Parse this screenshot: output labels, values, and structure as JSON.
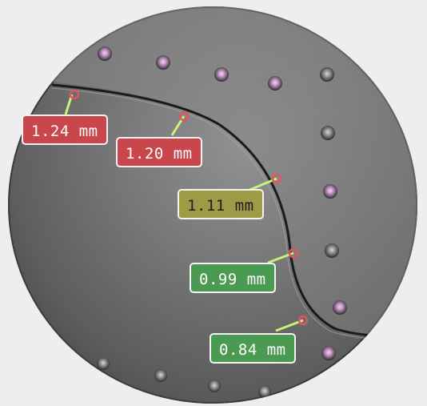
{
  "measurements": [
    {
      "label": "1.24 mm",
      "status": "red"
    },
    {
      "label": "1.20 mm",
      "status": "red"
    },
    {
      "label": "1.11 mm",
      "status": "yellow"
    },
    {
      "label": "0.99 mm",
      "status": "green"
    },
    {
      "label": "0.84 mm",
      "status": "green"
    }
  ],
  "colors": {
    "red": "#c8464c",
    "yellow": "#9e9a46",
    "green": "#4b9a52",
    "leader_line": "#c9f07a",
    "point_marker": "#e05560",
    "rivet_highlight": "#e6a9e8"
  },
  "icons": {
    "rivet": "rivet-icon",
    "measurement_point": "measurement-point-icon"
  }
}
